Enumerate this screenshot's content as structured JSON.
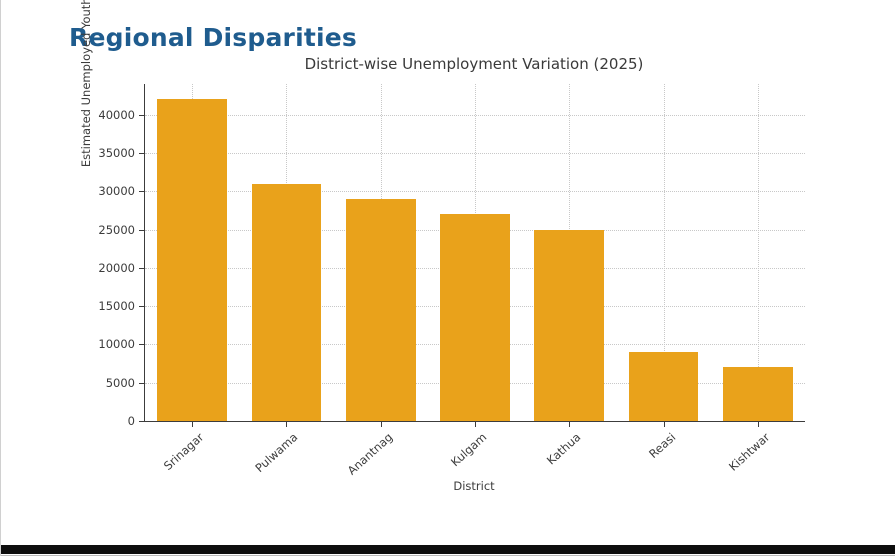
{
  "page": {
    "heading": "Regional Disparities"
  },
  "colors": {
    "heading": "#1f5c8e",
    "bar": "#e9a21b",
    "bottom_bar": "#0e0e0e"
  },
  "chart_data": {
    "type": "bar",
    "title": "District-wise Unemployment Variation (2025)",
    "categories": [
      "Srinagar",
      "Pulwama",
      "Anantnag",
      "Kulgam",
      "Kathua",
      "Reasi",
      "Kishtwar"
    ],
    "values": [
      42000,
      31000,
      29000,
      27000,
      25000,
      9000,
      7000
    ],
    "xlabel": "District",
    "ylabel": "Estimated Unemployed Youth",
    "ylim": [
      0,
      44000
    ],
    "yticks": [
      0,
      5000,
      10000,
      15000,
      20000,
      25000,
      30000,
      35000,
      40000
    ],
    "grid": true,
    "legend": "none"
  }
}
